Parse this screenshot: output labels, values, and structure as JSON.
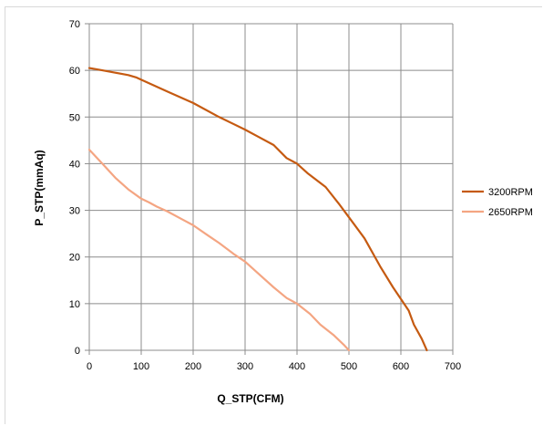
{
  "chart_data": {
    "type": "line",
    "title": "",
    "xlabel": "Q_STP(CFM)",
    "ylabel": "P_STP(mmAq)",
    "xlim": [
      0,
      700
    ],
    "ylim": [
      0,
      70
    ],
    "x_ticks": [
      "0",
      "100",
      "200",
      "300",
      "400",
      "500",
      "600",
      "700"
    ],
    "y_ticks": [
      "0",
      "10",
      "20",
      "30",
      "40",
      "50",
      "60",
      "70"
    ],
    "grid": true,
    "legend_position": "right",
    "series": [
      {
        "name": "3200RPM",
        "color": "#c55a11",
        "points": [
          [
            0,
            60.5
          ],
          [
            25,
            60
          ],
          [
            50,
            59.5
          ],
          [
            75,
            59
          ],
          [
            90,
            58.5
          ],
          [
            100,
            58
          ],
          [
            150,
            55.5
          ],
          [
            200,
            53
          ],
          [
            250,
            50
          ],
          [
            300,
            47.3
          ],
          [
            325,
            45.8
          ],
          [
            355,
            44
          ],
          [
            380,
            41.2
          ],
          [
            400,
            40
          ],
          [
            420,
            38
          ],
          [
            455,
            35
          ],
          [
            480,
            31.5
          ],
          [
            500,
            28.5
          ],
          [
            530,
            24
          ],
          [
            560,
            18
          ],
          [
            585,
            13.5
          ],
          [
            600,
            11
          ],
          [
            615,
            8.5
          ],
          [
            625,
            5.5
          ],
          [
            640,
            2.5
          ],
          [
            650,
            0
          ]
        ]
      },
      {
        "name": "2650RPM",
        "color": "#f4a582",
        "points": [
          [
            0,
            43
          ],
          [
            25,
            40
          ],
          [
            50,
            37
          ],
          [
            75,
            34.5
          ],
          [
            100,
            32.5
          ],
          [
            115,
            31.7
          ],
          [
            130,
            30.8
          ],
          [
            150,
            29.8
          ],
          [
            180,
            28
          ],
          [
            200,
            26.8
          ],
          [
            230,
            24.5
          ],
          [
            250,
            23
          ],
          [
            280,
            20.5
          ],
          [
            300,
            19
          ],
          [
            330,
            16
          ],
          [
            355,
            13.5
          ],
          [
            380,
            11.2
          ],
          [
            400,
            10
          ],
          [
            425,
            7.8
          ],
          [
            445,
            5.5
          ],
          [
            470,
            3.3
          ],
          [
            490,
            1.2
          ],
          [
            500,
            0
          ]
        ]
      }
    ]
  }
}
